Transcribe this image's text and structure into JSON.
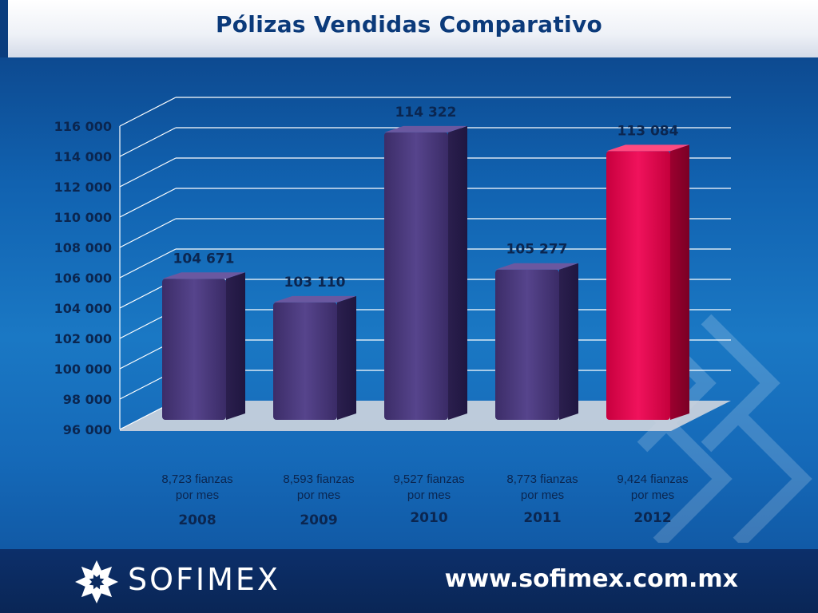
{
  "title": "Pólizas Vendidas Comparativo",
  "colors": {
    "bar_default": "#4a3878",
    "bar_highlight": "#e0004a",
    "grid": "#ffffff",
    "text": "#0b2650"
  },
  "chart_data": {
    "type": "bar",
    "categories": [
      "2008",
      "2009",
      "2010",
      "2011",
      "2012"
    ],
    "values": [
      104671,
      103110,
      114322,
      105277,
      113084
    ],
    "value_labels": [
      "104 671",
      "103 110",
      "114 322",
      "105 277",
      "113 084"
    ],
    "notes": [
      [
        "8,723 fianzas",
        "por mes"
      ],
      [
        "8,593 fianzas",
        "por mes"
      ],
      [
        "9,527  fianzas",
        "por mes"
      ],
      [
        "8,773  fianzas",
        "por mes"
      ],
      [
        "9,424  fianzas",
        "por mes"
      ]
    ],
    "highlight_index": 4,
    "ylim": [
      96000,
      116000
    ],
    "yticks": [
      96000,
      98000,
      100000,
      102000,
      104000,
      106000,
      108000,
      110000,
      112000,
      114000,
      116000
    ],
    "ytick_labels": [
      "96 000",
      "98 000",
      "100 000",
      "102 000",
      "104 000",
      "106 000",
      "108 000",
      "110 000",
      "112 000",
      "114 000",
      "116 000"
    ],
    "title": "",
    "xlabel": "",
    "ylabel": "",
    "grid": true,
    "style": "3d-bar"
  },
  "footer": {
    "logo_text": "SOFIMEX",
    "website": "www.sofimex.com.mx"
  }
}
